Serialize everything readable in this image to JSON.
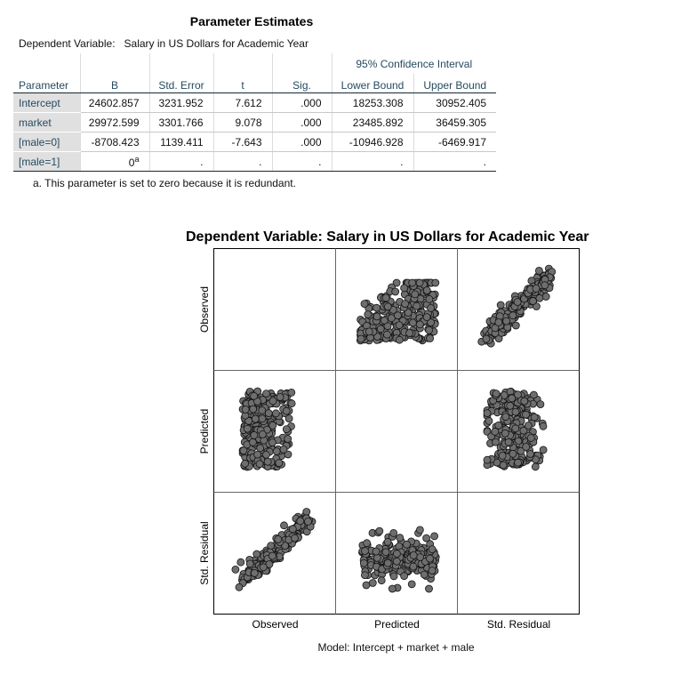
{
  "table": {
    "title": "Parameter Estimates",
    "dependent_label": "Dependent Variable:",
    "dependent_value": "Salary in US Dollars for Academic Year",
    "ci_header": "95% Confidence Interval",
    "columns": [
      "Parameter",
      "B",
      "Std. Error",
      "t",
      "Sig.",
      "Lower Bound",
      "Upper Bound"
    ],
    "rows": [
      {
        "param": "Intercept",
        "b": "24602.857",
        "se": "3231.952",
        "t": "7.612",
        "sig": ".000",
        "lower": "18253.308",
        "upper": "30952.405"
      },
      {
        "param": "market",
        "b": "29972.599",
        "se": "3301.766",
        "t": "9.078",
        "sig": ".000",
        "lower": "23485.892",
        "upper": "36459.305"
      },
      {
        "param": "[male=0]",
        "b": "-8708.423",
        "se": "1139.411",
        "t": "-7.643",
        "sig": ".000",
        "lower": "-10946.928",
        "upper": "-6469.917"
      },
      {
        "param": "[male=1]",
        "b": "0",
        "b_sup": "a",
        "se": ".",
        "t": ".",
        "sig": ".",
        "lower": ".",
        "upper": "."
      }
    ],
    "footnote": "a. This parameter is set to zero because it is redundant."
  },
  "chart": {
    "title": "Dependent Variable: Salary in US Dollars for Academic Year",
    "variables": [
      "Observed",
      "Predicted",
      "Std. Residual"
    ],
    "model_note": "Model: Intercept + market + male",
    "point_color": "#6e6e6e",
    "point_stroke": "#141414"
  },
  "chart_data": {
    "type": "scatter",
    "matrix": true,
    "variables": [
      "Observed",
      "Predicted",
      "Std. Residual"
    ],
    "panels": [
      {
        "row": "Observed",
        "col": "Predicted",
        "shape": "cloud with flat bottom and rising upper envelope",
        "observed_range": "bottom to top of panel",
        "predicted_range": "left to right of panel"
      },
      {
        "row": "Observed",
        "col": "Std. Residual",
        "shape": "strong positive linear band"
      },
      {
        "row": "Predicted",
        "col": "Observed",
        "shape": "cloud with flat left edge, spreading to the right"
      },
      {
        "row": "Predicted",
        "col": "Std. Residual",
        "shape": "vertical blob centred on zero residual"
      },
      {
        "row": "Std. Residual",
        "col": "Observed",
        "shape": "strong positive linear band"
      },
      {
        "row": "Std. Residual",
        "col": "Predicted",
        "shape": "horizontal blob"
      }
    ],
    "grid": false,
    "legend": "none"
  }
}
